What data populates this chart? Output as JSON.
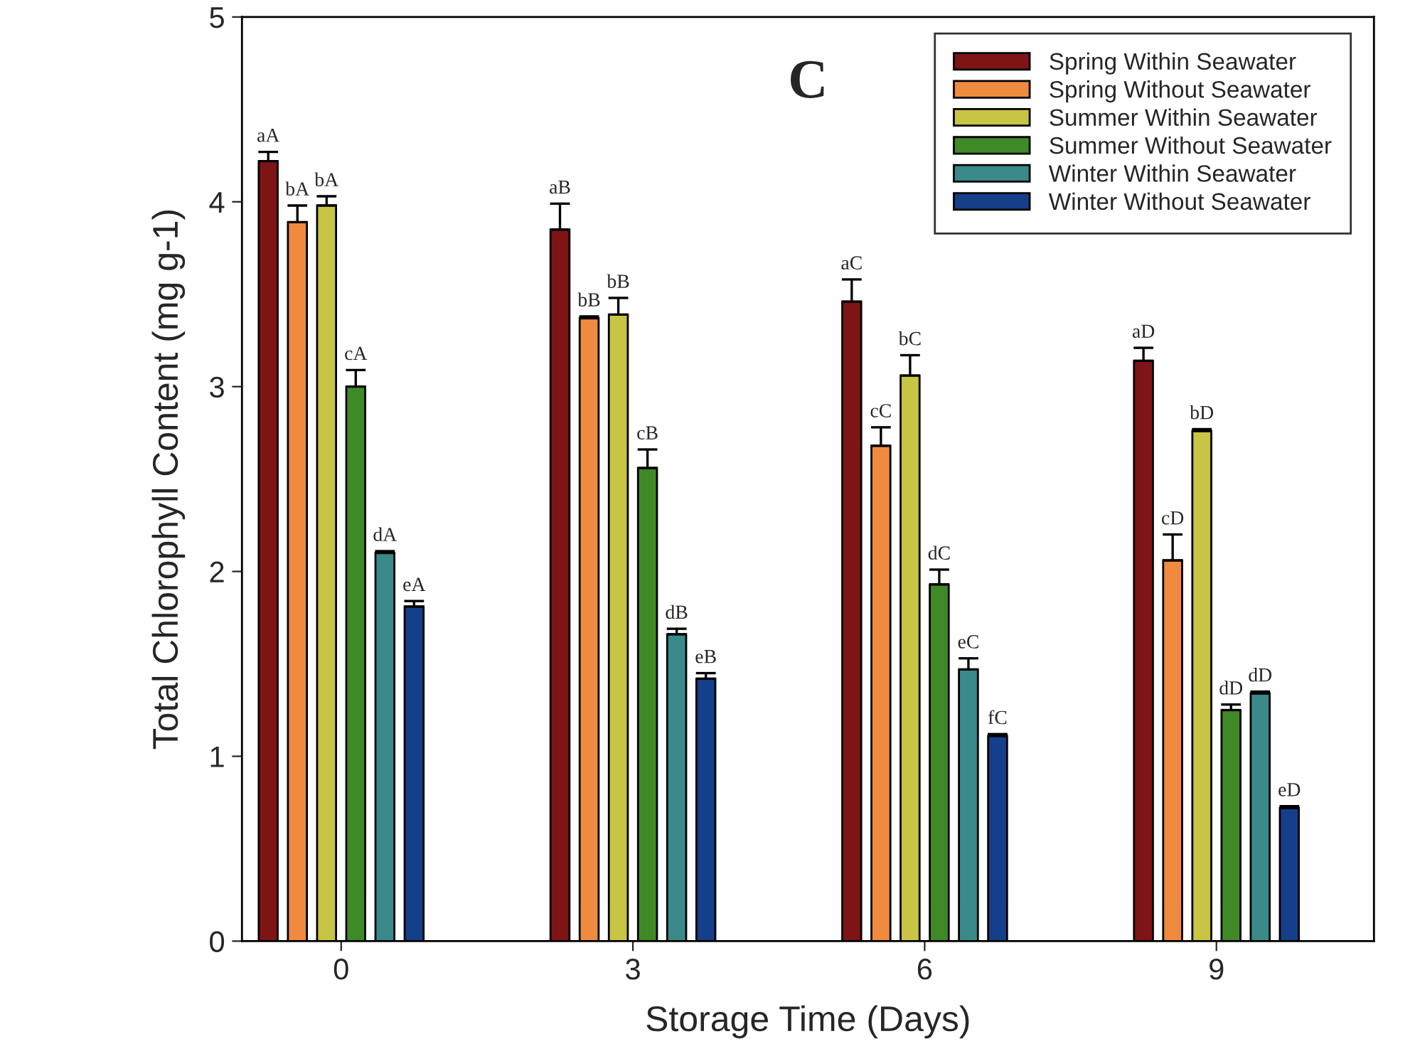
{
  "chart_data": {
    "type": "bar",
    "title": "C",
    "xlabel": "Storage Time (Days)",
    "ylabel": "Total Chlorophyll Content (mg g-1)",
    "categories": [
      "0",
      "3",
      "6",
      "9"
    ],
    "series": [
      {
        "name": "Spring Within Seawater",
        "color": "#7f1416",
        "values": [
          4.22,
          3.85,
          3.46,
          3.14
        ],
        "errors": [
          [
            4.22,
            4.27
          ],
          [
            3.85,
            3.99
          ],
          [
            3.46,
            3.58
          ],
          [
            3.14,
            3.21
          ]
        ],
        "value_labels": [
          "aA",
          "aB",
          "aC",
          "aD"
        ]
      },
      {
        "name": "Spring Without Seawater",
        "color": "#f08a3e",
        "values": [
          3.89,
          3.37,
          2.68,
          2.06
        ],
        "errors": [
          [
            3.89,
            3.98
          ],
          [
            3.37,
            3.38
          ],
          [
            2.68,
            2.78
          ],
          [
            2.06,
            2.2
          ]
        ],
        "value_labels": [
          "bA",
          "bB",
          "cC",
          "cD"
        ]
      },
      {
        "name": "Summer Within Seawater",
        "color": "#c8c444",
        "values": [
          3.98,
          3.39,
          3.06,
          2.76
        ],
        "errors": [
          [
            3.98,
            4.03
          ],
          [
            3.39,
            3.48
          ],
          [
            3.06,
            3.17
          ],
          [
            2.76,
            2.77
          ]
        ],
        "value_labels": [
          "bA",
          "bB",
          "bC",
          "bD"
        ]
      },
      {
        "name": "Summer Without Seawater",
        "color": "#3f8a26",
        "values": [
          3.0,
          2.56,
          1.93,
          1.25
        ],
        "errors": [
          [
            3.0,
            3.09
          ],
          [
            2.56,
            2.66
          ],
          [
            1.93,
            2.01
          ],
          [
            1.25,
            1.28
          ]
        ],
        "value_labels": [
          "cA",
          "cB",
          "dC",
          "dD"
        ]
      },
      {
        "name": "Winter Within Seawater",
        "color": "#3a8a8a",
        "values": [
          2.1,
          1.66,
          1.47,
          1.34
        ],
        "errors": [
          [
            2.1,
            2.11
          ],
          [
            1.66,
            1.69
          ],
          [
            1.47,
            1.53
          ],
          [
            1.34,
            1.35
          ]
        ],
        "value_labels": [
          "dA",
          "dB",
          "eC",
          "dD"
        ]
      },
      {
        "name": "Winter Without Seawater",
        "color": "#153f8a",
        "values": [
          1.81,
          1.42,
          1.11,
          0.72
        ],
        "errors": [
          [
            1.81,
            1.84
          ],
          [
            1.42,
            1.45
          ],
          [
            1.11,
            1.12
          ],
          [
            0.72,
            0.73
          ]
        ],
        "value_labels": [
          "eA",
          "eB",
          "fC",
          "eD"
        ]
      }
    ],
    "ylim": [
      0,
      5
    ],
    "yticks": [
      0,
      1,
      2,
      3,
      4,
      5
    ],
    "grid": false,
    "legend": "top right"
  }
}
